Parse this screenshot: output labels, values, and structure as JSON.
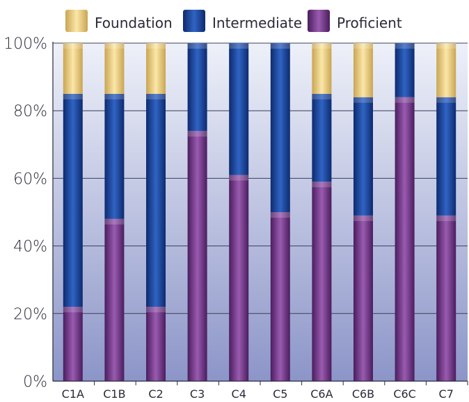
{
  "chart_data": {
    "type": "bar",
    "stacked": true,
    "categories": [
      "C1A",
      "C1B",
      "C2",
      "C3",
      "C4",
      "C5",
      "C6A",
      "C6B",
      "C6C",
      "C7"
    ],
    "series": [
      {
        "name": "Proficient",
        "values": [
          22,
          48,
          22,
          74,
          61,
          50,
          59,
          49,
          84,
          49
        ]
      },
      {
        "name": "Intermediate",
        "values": [
          63,
          37,
          63,
          26,
          39,
          50,
          26,
          35,
          16,
          35
        ]
      },
      {
        "name": "Foundation",
        "values": [
          15,
          15,
          15,
          0,
          0,
          0,
          15,
          16,
          0,
          16
        ]
      }
    ],
    "legend_order": [
      "Foundation",
      "Intermediate",
      "Proficient"
    ],
    "y_ticks": [
      "0%",
      "20%",
      "40%",
      "60%",
      "80%",
      "100%"
    ],
    "ylim": [
      0,
      100
    ],
    "grid": true,
    "legend_position": "top",
    "colors": {
      "Foundation": "#f1d58a",
      "Intermediate": "#1f4aa3",
      "Proficient": "#7a3d8f",
      "plot_top": "#e9edf8",
      "plot_bottom": "#8f98c9"
    }
  }
}
